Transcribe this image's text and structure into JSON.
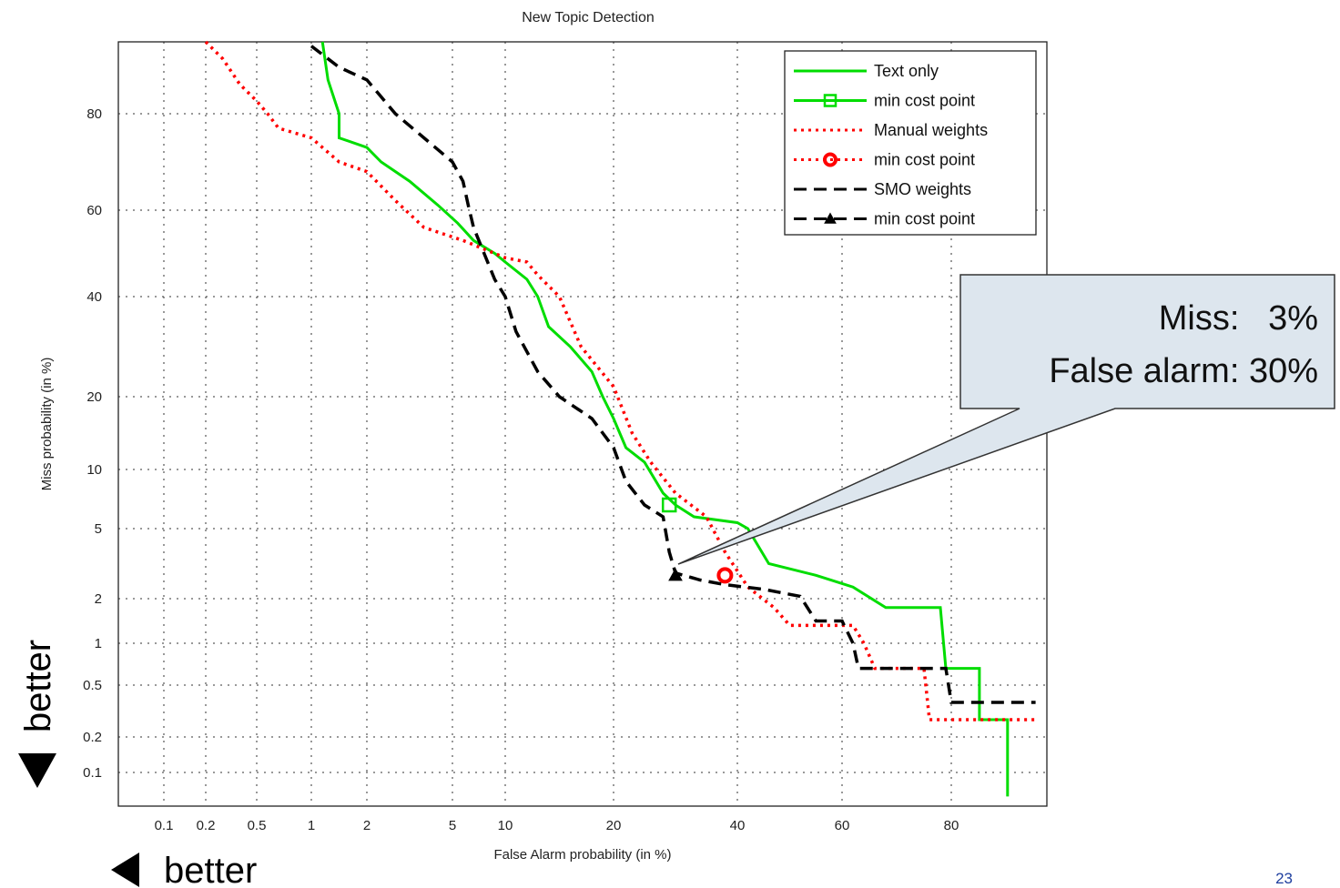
{
  "slide": {
    "page_number": "23",
    "better_left": "better",
    "better_down": "better"
  },
  "callout": {
    "line1": "Miss:   3%",
    "line2": "False alarm: 30%"
  },
  "chart_data": {
    "type": "line",
    "title": "New Topic Detection",
    "xlabel": "False Alarm probability (in %)",
    "ylabel": "Miss probability (in %)",
    "scale": "normal-deviate (DET)",
    "grid": true,
    "legend_position": "top-right",
    "xticks": [
      "0.1",
      "0.2",
      "0.5",
      "1",
      "2",
      "5",
      "10",
      "20",
      "40",
      "60",
      "80"
    ],
    "yticks": [
      "0.1",
      "0.2",
      "0.5",
      "1",
      "2",
      "5",
      "10",
      "20",
      "40",
      "60",
      "80"
    ],
    "legend": [
      {
        "label": "Text only",
        "style": "solid",
        "color": "#00dd00",
        "marker": "none"
      },
      {
        "label": "min cost point",
        "style": "solid",
        "color": "#00dd00",
        "marker": "square"
      },
      {
        "label": "Manual weights",
        "style": "dotted",
        "color": "#ff0000",
        "marker": "none"
      },
      {
        "label": "min cost point",
        "style": "dotted",
        "color": "#ff0000",
        "marker": "circle"
      },
      {
        "label": "SMO weights",
        "style": "dashed",
        "color": "#000000",
        "marker": "none"
      },
      {
        "label": "min cost point",
        "style": "dashed",
        "color": "#000000",
        "marker": "triangle"
      }
    ],
    "series": [
      {
        "name": "Text only",
        "color": "#00dd00",
        "style": "solid",
        "points": [
          [
            1.2,
            97
          ],
          [
            1.3,
            88
          ],
          [
            1.5,
            80
          ],
          [
            1.5,
            75
          ],
          [
            2.0,
            73
          ],
          [
            2.5,
            70
          ],
          [
            3.5,
            66
          ],
          [
            4.5,
            61
          ],
          [
            5.5,
            57
          ],
          [
            7.0,
            53
          ],
          [
            9.0,
            50
          ],
          [
            10,
            48
          ],
          [
            12,
            44
          ],
          [
            13,
            40
          ],
          [
            14,
            34
          ],
          [
            16,
            30
          ],
          [
            18,
            25
          ],
          [
            19,
            20
          ],
          [
            20,
            17
          ],
          [
            22,
            13
          ],
          [
            25,
            11
          ],
          [
            28,
            8
          ],
          [
            30,
            7
          ],
          [
            33,
            6
          ],
          [
            40,
            5.5
          ],
          [
            42,
            5
          ],
          [
            46,
            3.5
          ],
          [
            55,
            3.0
          ],
          [
            62,
            2.5
          ],
          [
            68,
            1.8
          ],
          [
            78,
            1.8
          ],
          [
            79,
            0.7
          ],
          [
            85,
            0.7
          ],
          [
            85,
            0.3
          ],
          [
            90,
            0.3
          ],
          [
            90,
            0.05
          ]
        ]
      },
      {
        "name": "Manual weights",
        "color": "#ff0000",
        "style": "dotted",
        "points": [
          [
            0.2,
            97
          ],
          [
            0.3,
            93
          ],
          [
            0.4,
            87
          ],
          [
            0.5,
            83
          ],
          [
            0.6,
            80
          ],
          [
            0.7,
            77
          ],
          [
            1.0,
            75
          ],
          [
            1.5,
            70
          ],
          [
            2,
            68
          ],
          [
            3,
            62
          ],
          [
            4,
            56
          ],
          [
            6,
            53
          ],
          [
            8,
            51
          ],
          [
            10,
            49
          ],
          [
            12,
            48
          ],
          [
            13,
            45
          ],
          [
            15,
            40
          ],
          [
            17,
            30
          ],
          [
            20,
            22
          ],
          [
            23,
            15
          ],
          [
            26,
            11
          ],
          [
            30,
            8
          ],
          [
            35,
            6
          ],
          [
            38,
            4
          ],
          [
            42,
            2.5
          ],
          [
            47,
            1.8
          ],
          [
            50,
            1.4
          ],
          [
            62,
            1.4
          ],
          [
            64,
            1.0
          ],
          [
            66,
            0.7
          ],
          [
            75,
            0.7
          ],
          [
            76,
            0.3
          ],
          [
            95,
            0.3
          ]
        ]
      },
      {
        "name": "SMO weights",
        "color": "#000000",
        "style": "dashed",
        "points": [
          [
            1.0,
            96
          ],
          [
            1.2,
            94
          ],
          [
            1.5,
            91
          ],
          [
            2.0,
            88
          ],
          [
            2.5,
            84
          ],
          [
            3,
            80
          ],
          [
            4,
            75
          ],
          [
            5,
            70
          ],
          [
            6,
            66
          ],
          [
            6.5,
            61
          ],
          [
            7,
            56
          ],
          [
            8,
            50
          ],
          [
            9,
            44
          ],
          [
            10,
            40
          ],
          [
            11,
            33
          ],
          [
            13,
            25
          ],
          [
            15,
            20
          ],
          [
            18,
            17
          ],
          [
            20,
            13
          ],
          [
            22,
            9
          ],
          [
            25,
            7
          ],
          [
            28,
            6
          ],
          [
            29,
            4
          ],
          [
            30,
            3.1
          ],
          [
            34,
            2.8
          ],
          [
            38,
            2.6
          ],
          [
            45,
            2.4
          ],
          [
            52,
            2.1
          ],
          [
            55,
            1.5
          ],
          [
            60,
            1.5
          ],
          [
            62,
            1.0
          ],
          [
            63,
            0.7
          ],
          [
            79,
            0.7
          ],
          [
            80,
            0.4
          ],
          [
            95,
            0.4
          ]
        ]
      }
    ],
    "min_cost_points": [
      {
        "series": "Text only",
        "marker": "square",
        "x": 29,
        "y": 7
      },
      {
        "series": "Manual weights",
        "marker": "circle",
        "x": 38,
        "y": 3
      },
      {
        "series": "SMO weights",
        "marker": "triangle",
        "x": 30,
        "y": 3
      }
    ]
  }
}
